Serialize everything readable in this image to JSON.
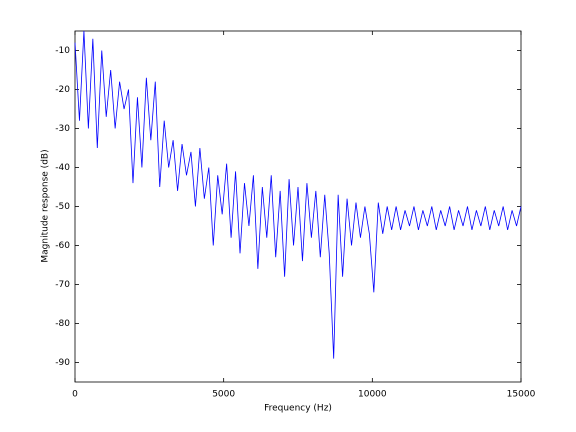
{
  "chart_data": {
    "type": "line",
    "xlabel": "Frequency (Hz)",
    "ylabel": "Magnitude response (dB)",
    "x": [
      0,
      150,
      300,
      450,
      600,
      750,
      900,
      1050,
      1200,
      1350,
      1500,
      1650,
      1800,
      1950,
      2100,
      2250,
      2400,
      2550,
      2700,
      2850,
      3000,
      3150,
      3300,
      3450,
      3600,
      3750,
      3900,
      4050,
      4200,
      4350,
      4500,
      4650,
      4800,
      4950,
      5100,
      5250,
      5400,
      5550,
      5700,
      5850,
      6000,
      6150,
      6300,
      6450,
      6600,
      6750,
      6900,
      7050,
      7200,
      7350,
      7500,
      7650,
      7800,
      7950,
      8100,
      8250,
      8400,
      8550,
      8700,
      8850,
      9000,
      9150,
      9300,
      9450,
      9600,
      9750,
      9900,
      10050,
      10200,
      10350,
      10500,
      10650,
      10800,
      10950,
      11100,
      11250,
      11400,
      11550,
      11700,
      11850,
      12000,
      12150,
      12300,
      12450,
      12600,
      12750,
      12900,
      13050,
      13200,
      13350,
      13500,
      13650,
      13800,
      13950,
      14100,
      14250,
      14400,
      14550,
      14700,
      14850,
      15000
    ],
    "values": [
      -8,
      -28,
      -5,
      -30,
      -7,
      -35,
      -10,
      -27,
      -15,
      -30,
      -18,
      -25,
      -20,
      -44,
      -22,
      -40,
      -17,
      -33,
      -18,
      -45,
      -28,
      -40,
      -33,
      -46,
      -34,
      -42,
      -36,
      -50,
      -35,
      -48,
      -40,
      -60,
      -42,
      -52,
      -39,
      -58,
      -41,
      -62,
      -44,
      -55,
      -42,
      -66,
      -45,
      -58,
      -42,
      -63,
      -46,
      -68,
      -43,
      -60,
      -45,
      -64,
      -44,
      -58,
      -46,
      -63,
      -47,
      -62,
      -89,
      -47,
      -68,
      -48,
      -60,
      -49,
      -58,
      -50,
      -57,
      -72,
      -49,
      -57,
      -50,
      -56,
      -50,
      -56,
      -51,
      -55,
      -50,
      -56,
      -51,
      -55,
      -50,
      -56,
      -51,
      -55,
      -50,
      -56,
      -51,
      -55,
      -50,
      -56,
      -51,
      -55,
      -50,
      -56,
      -51,
      -55,
      -50,
      -56,
      -51,
      -55,
      -50
    ],
    "color": "#0000ff",
    "xlim": [
      0,
      15000
    ],
    "xticks": [
      0,
      5000,
      10000,
      15000
    ],
    "ylim": [
      -95,
      -5
    ],
    "yticks": [
      -10,
      -20,
      -30,
      -40,
      -50,
      -60,
      -70,
      -80,
      -90
    ]
  }
}
